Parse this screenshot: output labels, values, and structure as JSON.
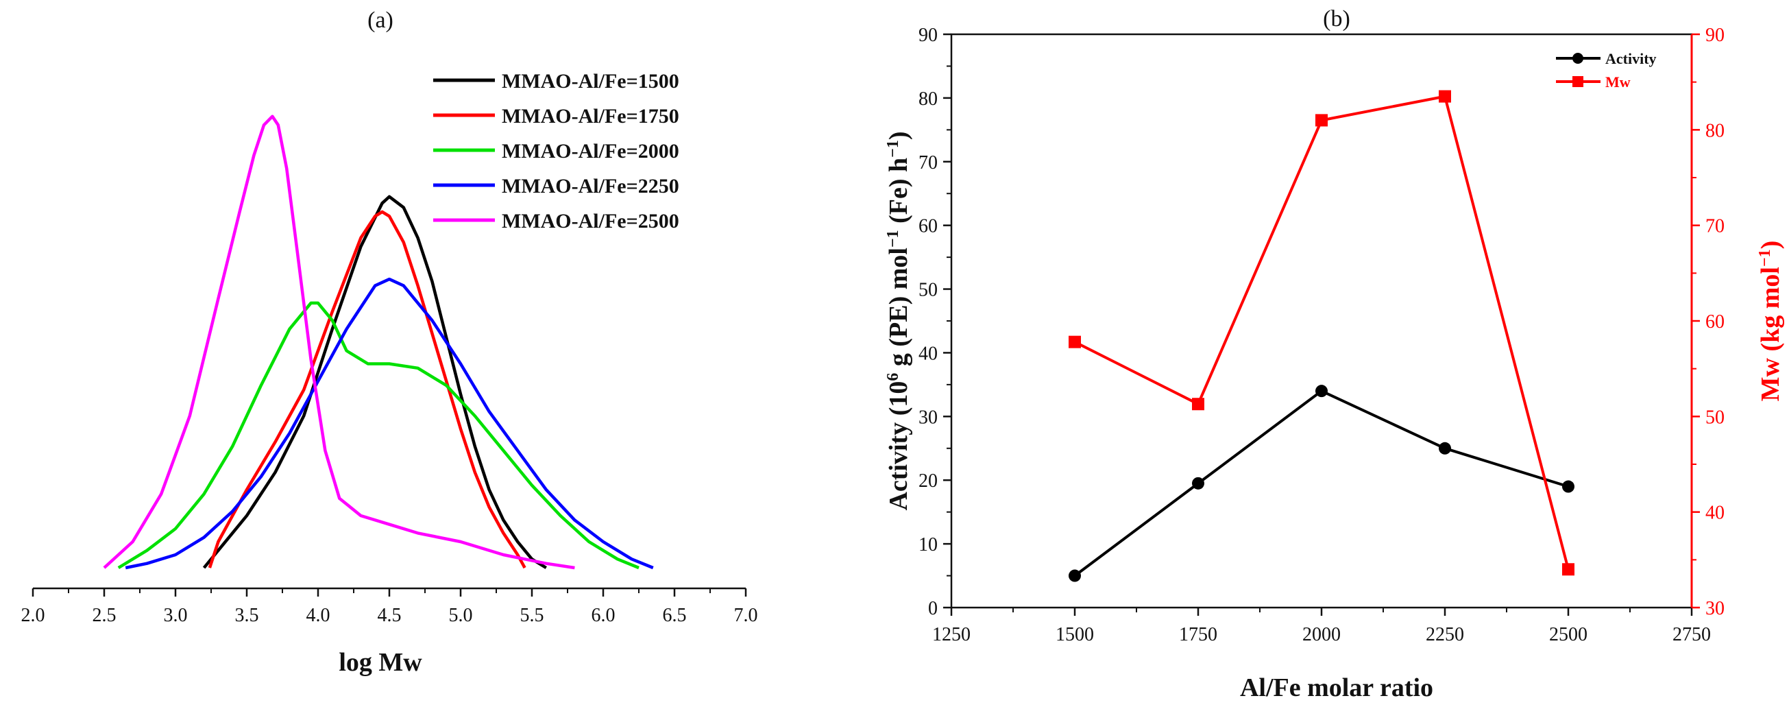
{
  "chart_data": [
    {
      "panel": "(a)",
      "type": "line",
      "xlabel": "log Mw",
      "ylabel": "",
      "xlim": [
        2.0,
        7.0
      ],
      "xticks": [
        "2.0",
        "2.5",
        "3.0",
        "3.5",
        "4.0",
        "4.5",
        "5.0",
        "5.5",
        "6.0",
        "6.5",
        "7.0"
      ],
      "ylim": [
        0,
        1.0
      ],
      "legend_position": "top-right",
      "series": [
        {
          "name": "MMAO-Al/Fe=1500",
          "color": "#000000",
          "x": [
            3.2,
            3.3,
            3.5,
            3.7,
            3.9,
            4.1,
            4.3,
            4.45,
            4.5,
            4.6,
            4.7,
            4.8,
            4.9,
            5.0,
            5.1,
            5.2,
            5.3,
            5.4,
            5.5,
            5.6
          ],
          "y": [
            0.0,
            0.04,
            0.12,
            0.22,
            0.35,
            0.55,
            0.74,
            0.84,
            0.855,
            0.83,
            0.76,
            0.66,
            0.53,
            0.4,
            0.28,
            0.18,
            0.11,
            0.06,
            0.02,
            0.0
          ]
        },
        {
          "name": "MMAO-Al/Fe=1750",
          "color": "#ff0000",
          "x": [
            3.24,
            3.3,
            3.5,
            3.7,
            3.9,
            4.1,
            4.3,
            4.4,
            4.45,
            4.5,
            4.6,
            4.7,
            4.8,
            4.9,
            5.0,
            5.1,
            5.2,
            5.3,
            5.4,
            5.45
          ],
          "y": [
            0.0,
            0.06,
            0.18,
            0.29,
            0.41,
            0.59,
            0.76,
            0.81,
            0.82,
            0.81,
            0.75,
            0.65,
            0.54,
            0.43,
            0.32,
            0.22,
            0.14,
            0.08,
            0.03,
            0.0
          ]
        },
        {
          "name": "MMAO-Al/Fe=2000",
          "color": "#00e000",
          "x": [
            2.6,
            2.8,
            3.0,
            3.2,
            3.4,
            3.6,
            3.8,
            3.95,
            4.0,
            4.1,
            4.2,
            4.35,
            4.5,
            4.7,
            4.9,
            5.1,
            5.3,
            5.5,
            5.7,
            5.9,
            6.1,
            6.25
          ],
          "y": [
            0.0,
            0.04,
            0.09,
            0.17,
            0.28,
            0.42,
            0.55,
            0.61,
            0.61,
            0.57,
            0.5,
            0.47,
            0.47,
            0.46,
            0.42,
            0.35,
            0.27,
            0.19,
            0.12,
            0.06,
            0.02,
            0.0
          ]
        },
        {
          "name": "MMAO-Al/Fe=2250",
          "color": "#0000ff",
          "x": [
            2.65,
            2.8,
            3.0,
            3.2,
            3.4,
            3.6,
            3.8,
            4.0,
            4.2,
            4.4,
            4.5,
            4.6,
            4.8,
            5.0,
            5.2,
            5.4,
            5.6,
            5.8,
            6.0,
            6.2,
            6.35
          ],
          "y": [
            0.0,
            0.01,
            0.03,
            0.07,
            0.13,
            0.21,
            0.31,
            0.43,
            0.55,
            0.65,
            0.665,
            0.65,
            0.57,
            0.47,
            0.36,
            0.27,
            0.18,
            0.11,
            0.06,
            0.02,
            0.0
          ]
        },
        {
          "name": "MMAO-Al/Fe=2500",
          "color": "#ff00ff",
          "x": [
            2.5,
            2.7,
            2.9,
            3.1,
            3.3,
            3.45,
            3.55,
            3.62,
            3.68,
            3.72,
            3.78,
            3.85,
            3.95,
            4.05,
            4.15,
            4.3,
            4.5,
            4.7,
            5.0,
            5.3,
            5.6,
            5.8
          ],
          "y": [
            0.0,
            0.06,
            0.17,
            0.35,
            0.62,
            0.82,
            0.95,
            1.02,
            1.04,
            1.02,
            0.92,
            0.74,
            0.48,
            0.27,
            0.16,
            0.12,
            0.1,
            0.08,
            0.06,
            0.03,
            0.01,
            0.0
          ]
        }
      ]
    },
    {
      "panel": "(b)",
      "type": "line",
      "xlabel": "Al/Fe molar ratio",
      "xlim": [
        1250,
        2750
      ],
      "xticks": [
        "1250",
        "1500",
        "1750",
        "2000",
        "2250",
        "2500",
        "2750"
      ],
      "ylabel_left": "Activity (10",
      "ylabel_left_sup1": "6",
      "ylabel_left_mid": " g (PE) mol",
      "ylabel_left_sup2": "−1",
      "ylabel_left_end": " (Fe) h",
      "ylabel_left_sup3": "−1",
      "ylabel_left_close": ")",
      "ylim_left": [
        0,
        90
      ],
      "yticks_left": [
        "0",
        "10",
        "20",
        "30",
        "40",
        "50",
        "60",
        "70",
        "80",
        "90"
      ],
      "ylabel_right": "Mw (kg mol",
      "ylabel_right_sup": "−1",
      "ylabel_right_close": ")",
      "ylim_right": [
        30,
        90
      ],
      "yticks_right": [
        "30",
        "40",
        "50",
        "60",
        "70",
        "80",
        "90"
      ],
      "legend_position": "top-right",
      "series": [
        {
          "name": "Activity",
          "color": "#000000",
          "marker": "circle",
          "axis": "left",
          "x": [
            1500,
            1750,
            2000,
            2250,
            2500
          ],
          "y": [
            5,
            19.5,
            34,
            25,
            19
          ]
        },
        {
          "name": "Mw",
          "color": "#ff0000",
          "marker": "square",
          "axis": "right",
          "x": [
            1500,
            1750,
            2000,
            2250,
            2500
          ],
          "y": [
            57.8,
            51.3,
            81,
            83.5,
            34
          ]
        }
      ]
    }
  ]
}
